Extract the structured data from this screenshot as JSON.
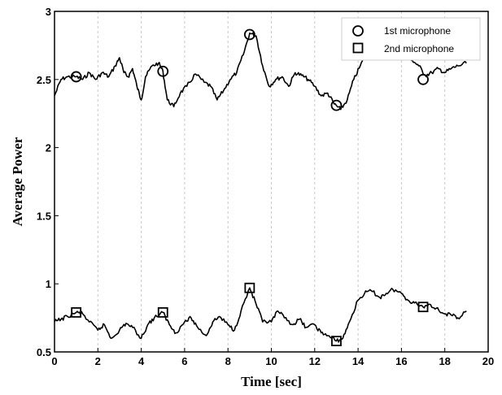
{
  "chart_data": {
    "type": "line",
    "title": "",
    "xlabel": "Time [sec]",
    "ylabel": "Average Power",
    "xlim": [
      0,
      20
    ],
    "ylim": [
      0.5,
      3
    ],
    "x_ticks": [
      "0",
      "2",
      "4",
      "6",
      "8",
      "10",
      "12",
      "14",
      "16",
      "18",
      "20"
    ],
    "y_ticks": [
      "0.5",
      "1",
      "1.5",
      "2",
      "2.5",
      "3"
    ],
    "grid": "vertical dashed",
    "legend_position": "top-right",
    "series": [
      {
        "name": "1st microphone",
        "marker": "circle",
        "color": "#000000",
        "marker_x": [
          1,
          5,
          9,
          13,
          17
        ],
        "marker_y": [
          2.52,
          2.56,
          2.83,
          2.31,
          2.5
        ],
        "x": [
          0,
          0.3,
          0.6,
          1.0,
          1.3,
          1.6,
          1.9,
          2.2,
          2.5,
          2.8,
          3.0,
          3.2,
          3.4,
          3.6,
          3.8,
          4.0,
          4.2,
          4.5,
          4.8,
          5.0,
          5.2,
          5.5,
          5.8,
          6.1,
          6.5,
          6.9,
          7.2,
          7.5,
          7.8,
          8.1,
          8.4,
          8.7,
          9.0,
          9.3,
          9.6,
          9.9,
          10.2,
          10.5,
          10.8,
          11.1,
          11.4,
          11.7,
          12.0,
          12.3,
          12.6,
          12.9,
          13.2,
          13.5,
          13.8,
          14.1,
          14.4,
          14.7,
          15.0,
          15.3,
          15.6,
          15.9,
          16.2,
          16.5,
          16.8,
          17.1,
          17.4,
          17.7,
          18.0,
          18.3,
          18.6,
          19.0
        ],
        "y": [
          2.38,
          2.5,
          2.52,
          2.52,
          2.5,
          2.55,
          2.5,
          2.55,
          2.52,
          2.6,
          2.66,
          2.55,
          2.52,
          2.58,
          2.45,
          2.35,
          2.52,
          2.6,
          2.62,
          2.56,
          2.35,
          2.3,
          2.4,
          2.45,
          2.54,
          2.48,
          2.45,
          2.35,
          2.42,
          2.5,
          2.55,
          2.68,
          2.84,
          2.82,
          2.6,
          2.45,
          2.5,
          2.52,
          2.45,
          2.55,
          2.53,
          2.5,
          2.45,
          2.38,
          2.4,
          2.32,
          2.28,
          2.35,
          2.5,
          2.6,
          2.7,
          2.67,
          2.72,
          2.69,
          2.66,
          2.73,
          2.7,
          2.64,
          2.6,
          2.53,
          2.55,
          2.58,
          2.55,
          2.58,
          2.6,
          2.62
        ]
      },
      {
        "name": "2nd microphone",
        "marker": "square",
        "color": "#000000",
        "marker_x": [
          1,
          5,
          9,
          13,
          17
        ],
        "marker_y": [
          0.79,
          0.79,
          0.97,
          0.58,
          0.83
        ],
        "x": [
          0,
          0.3,
          0.6,
          1.0,
          1.3,
          1.6,
          2.0,
          2.3,
          2.6,
          3.0,
          3.3,
          3.6,
          4.0,
          4.3,
          4.6,
          5.0,
          5.3,
          5.6,
          6.0,
          6.3,
          6.6,
          7.0,
          7.3,
          7.6,
          8.0,
          8.3,
          8.6,
          9.0,
          9.3,
          9.6,
          10.0,
          10.3,
          10.6,
          11.0,
          11.3,
          11.6,
          12.0,
          12.3,
          12.6,
          13.0,
          13.3,
          13.6,
          14.0,
          14.3,
          14.6,
          15.0,
          15.3,
          15.6,
          16.0,
          16.3,
          16.6,
          17.0,
          17.3,
          17.6,
          18.0,
          18.3,
          18.6,
          19.0
        ],
        "y": [
          0.72,
          0.74,
          0.76,
          0.79,
          0.78,
          0.72,
          0.66,
          0.7,
          0.6,
          0.66,
          0.71,
          0.68,
          0.6,
          0.7,
          0.75,
          0.79,
          0.7,
          0.64,
          0.72,
          0.75,
          0.68,
          0.62,
          0.72,
          0.76,
          0.7,
          0.66,
          0.8,
          0.97,
          0.85,
          0.72,
          0.72,
          0.8,
          0.75,
          0.7,
          0.74,
          0.68,
          0.7,
          0.64,
          0.62,
          0.58,
          0.6,
          0.72,
          0.88,
          0.93,
          0.95,
          0.9,
          0.93,
          0.96,
          0.93,
          0.88,
          0.86,
          0.83,
          0.85,
          0.82,
          0.78,
          0.77,
          0.75,
          0.8
        ]
      }
    ]
  }
}
